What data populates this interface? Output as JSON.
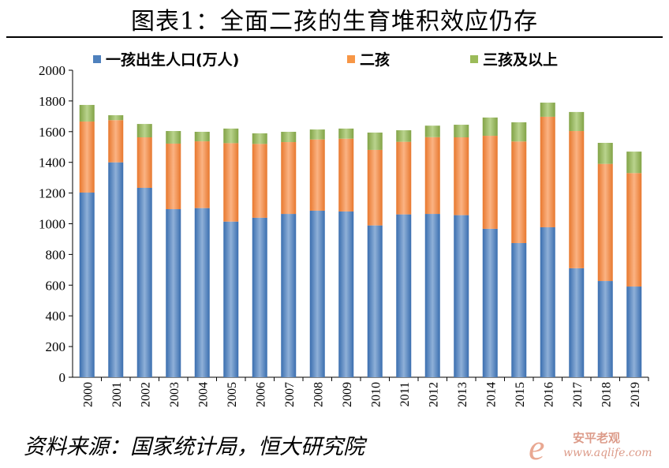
{
  "title": "图表1：全面二孩的生育堆积效应仍存",
  "source": "资料来源：国家统计局，恒大研究院",
  "watermark": {
    "logo": "e",
    "name": "安平老观",
    "url": "www.aqlife.com"
  },
  "chart_data": {
    "type": "bar",
    "stacked": true,
    "title": "图表1：全面二孩的生育堆积效应仍存",
    "xlabel": "",
    "ylabel": "",
    "ylim": [
      0,
      2000
    ],
    "yticks": [
      0,
      200,
      400,
      600,
      800,
      1000,
      1200,
      1400,
      1600,
      1800,
      2000
    ],
    "grid": false,
    "legend_position": "top",
    "categories": [
      "2000",
      "2001",
      "2002",
      "2003",
      "2004",
      "2005",
      "2006",
      "2007",
      "2008",
      "2009",
      "2010",
      "2011",
      "2012",
      "2013",
      "2014",
      "2015",
      "2016",
      "2017",
      "2018",
      "2019"
    ],
    "series": [
      {
        "name": "一孩出生人口(万人)",
        "color": "#4f81bd",
        "values": [
          1203,
          1400,
          1234,
          1095,
          1102,
          1014,
          1039,
          1064,
          1085,
          1080,
          989,
          1061,
          1064,
          1056,
          967,
          874,
          977,
          710,
          627,
          591
        ]
      },
      {
        "name": "二孩",
        "color": "#f79646",
        "values": [
          463,
          275,
          329,
          427,
          435,
          511,
          481,
          468,
          464,
          474,
          492,
          473,
          500,
          507,
          606,
          662,
          720,
          894,
          763,
          739
        ]
      },
      {
        "name": "三孩及以上",
        "color": "#9bbb59",
        "values": [
          108,
          32,
          87,
          82,
          62,
          95,
          69,
          67,
          65,
          66,
          113,
          75,
          75,
          82,
          119,
          125,
          92,
          124,
          137,
          140
        ]
      }
    ]
  }
}
